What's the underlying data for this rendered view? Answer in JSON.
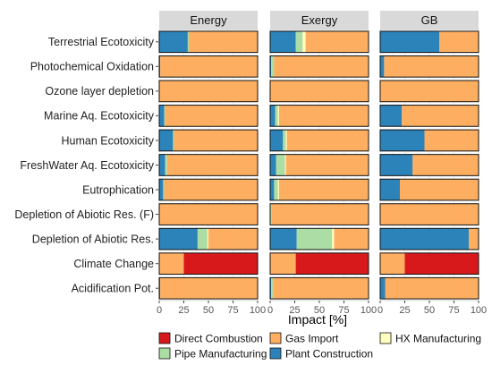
{
  "chart_data": {
    "type": "bar",
    "orientation": "horizontal",
    "stacked": true,
    "xlabel": "Impact [%]",
    "xlim": [
      0,
      100
    ],
    "xticks": [
      0,
      25,
      50,
      75,
      100
    ],
    "grid": true,
    "legend_position": "bottom",
    "categories": [
      "Terrestrial Ecotoxicity",
      "Photochemical Oxidation",
      "Ozone layer depletion",
      "Marine Aq. Ecotoxicity",
      "Human Ecotoxicity",
      "FreshWater Aq. Ecotoxicity",
      "Eutrophication",
      "Depletion of Abiotic Res. (F)",
      "Depletion of Abiotic Res.",
      "Climate Change",
      "Acidification Pot."
    ],
    "components": [
      {
        "name": "Direct Combustion",
        "color": "#d7191c"
      },
      {
        "name": "Gas Import",
        "color": "#fdae61"
      },
      {
        "name": "HX Manufacturing",
        "color": "#ffffbf"
      },
      {
        "name": "Pipe Manufacturing",
        "color": "#abdda4"
      },
      {
        "name": "Plant Construction",
        "color": "#2b83ba"
      }
    ],
    "legend_order": [
      "Direct Combustion",
      "Gas Import",
      "HX Manufacturing",
      "Pipe Manufacturing",
      "Plant Construction"
    ],
    "stack_order": [
      "Plant Construction",
      "Pipe Manufacturing",
      "HX Manufacturing",
      "Gas Import",
      "Direct Combustion"
    ],
    "facets": [
      {
        "title": "Energy",
        "values": {
          "Plant Construction": [
            29,
            1,
            0,
            5,
            14,
            6,
            4,
            0,
            39,
            0,
            1
          ],
          "Pipe Manufacturing": [
            1,
            0,
            0,
            1,
            1,
            2,
            1,
            0,
            10,
            0,
            0
          ],
          "HX Manufacturing": [
            0,
            0,
            0,
            0,
            0,
            0,
            0,
            0,
            1,
            0,
            0
          ],
          "Gas Import": [
            70,
            99,
            100,
            94,
            85,
            92,
            95,
            100,
            50,
            25,
            99
          ],
          "Direct Combustion": [
            0,
            0,
            0,
            0,
            0,
            0,
            0,
            0,
            0,
            75,
            0
          ]
        }
      },
      {
        "title": "Exergy",
        "values": {
          "Plant Construction": [
            26,
            1,
            0,
            5,
            13,
            6,
            4,
            0,
            27,
            0,
            1
          ],
          "Pipe Manufacturing": [
            7,
            3,
            0,
            3,
            3,
            9,
            4,
            1,
            36,
            0,
            2
          ],
          "HX Manufacturing": [
            3,
            0,
            0,
            1,
            1,
            1,
            1,
            0,
            2,
            0,
            0
          ],
          "Gas Import": [
            64,
            96,
            100,
            91,
            83,
            84,
            91,
            99,
            35,
            26,
            97
          ],
          "Direct Combustion": [
            0,
            0,
            0,
            0,
            0,
            0,
            0,
            0,
            0,
            74,
            0
          ]
        }
      },
      {
        "title": "GB",
        "values": {
          "Plant Construction": [
            60,
            4,
            0,
            22,
            45,
            33,
            20,
            0,
            90,
            0,
            5
          ],
          "Pipe Manufacturing": [
            0,
            0,
            0,
            0,
            0,
            0,
            0,
            0,
            0,
            0,
            0
          ],
          "HX Manufacturing": [
            0,
            0,
            0,
            0,
            0,
            0,
            0,
            0,
            0,
            0,
            0
          ],
          "Gas Import": [
            40,
            96,
            100,
            78,
            55,
            67,
            80,
            100,
            10,
            25,
            95
          ],
          "Direct Combustion": [
            0,
            0,
            0,
            0,
            0,
            0,
            0,
            0,
            0,
            75,
            0
          ]
        }
      }
    ]
  }
}
